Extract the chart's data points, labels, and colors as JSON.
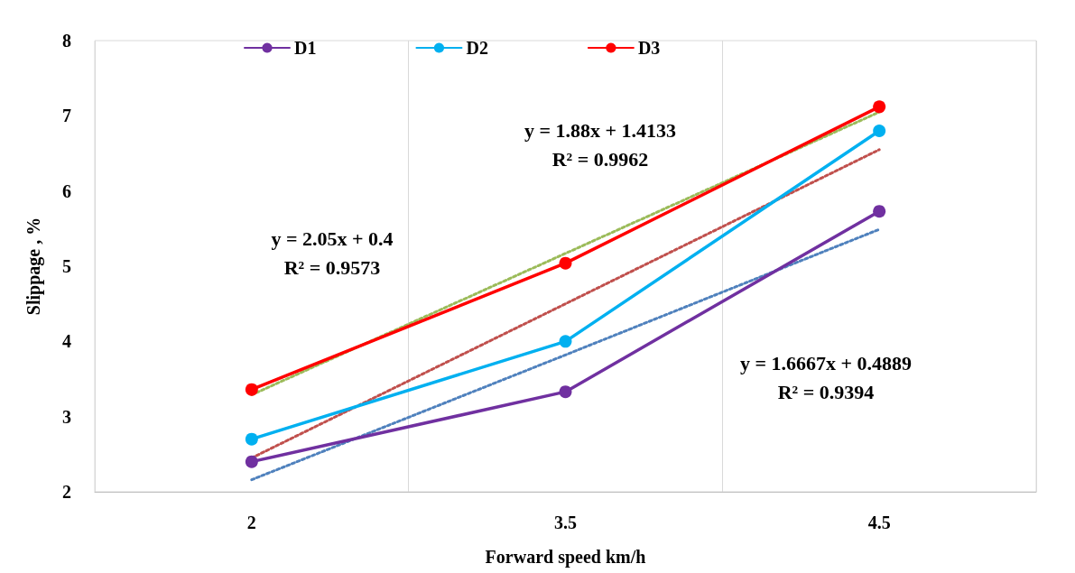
{
  "chart_data": {
    "type": "line",
    "xlabel": "Forward speed km/h",
    "ylabel": "Slippage , %",
    "categories": [
      "2",
      "3.5",
      "4.5"
    ],
    "series": [
      {
        "name": "D1",
        "color": "#7030a0",
        "values": [
          2.4,
          3.33,
          5.73
        ]
      },
      {
        "name": "D2",
        "color": "#00b0f0",
        "values": [
          2.7,
          4.0,
          6.8
        ]
      },
      {
        "name": "D3",
        "color": "#ff0000",
        "values": [
          3.36,
          5.04,
          7.12
        ]
      },
      {
        "type": "line",
        "color": "#4f81bd",
        "line_style": "dotted",
        "marker": "none",
        "values": [
          2.16,
          3.82,
          5.49
        ]
      },
      {
        "type": "line",
        "color": "#c0504d",
        "line_style": "dotted",
        "marker": "none",
        "values": [
          2.45,
          4.5,
          6.55
        ]
      },
      {
        "type": "line",
        "color": "#9bbb59",
        "line_style": "dotted",
        "marker": "none",
        "values": [
          3.29,
          5.17,
          7.05
        ]
      }
    ],
    "ylim": [
      2,
      8
    ],
    "yticks": [
      2,
      3,
      4,
      5,
      6,
      7,
      8
    ],
    "grid": "x",
    "legend": "top left",
    "marker": "circle",
    "line_style": "solid",
    "annotations": [
      "y = 1.88x + 1.4133\nR² = 0.9962",
      "y = 2.05x + 0.4\nR² = 0.9573",
      "y = 1.6667x + 0.4889\nR² = 0.9394"
    ]
  }
}
